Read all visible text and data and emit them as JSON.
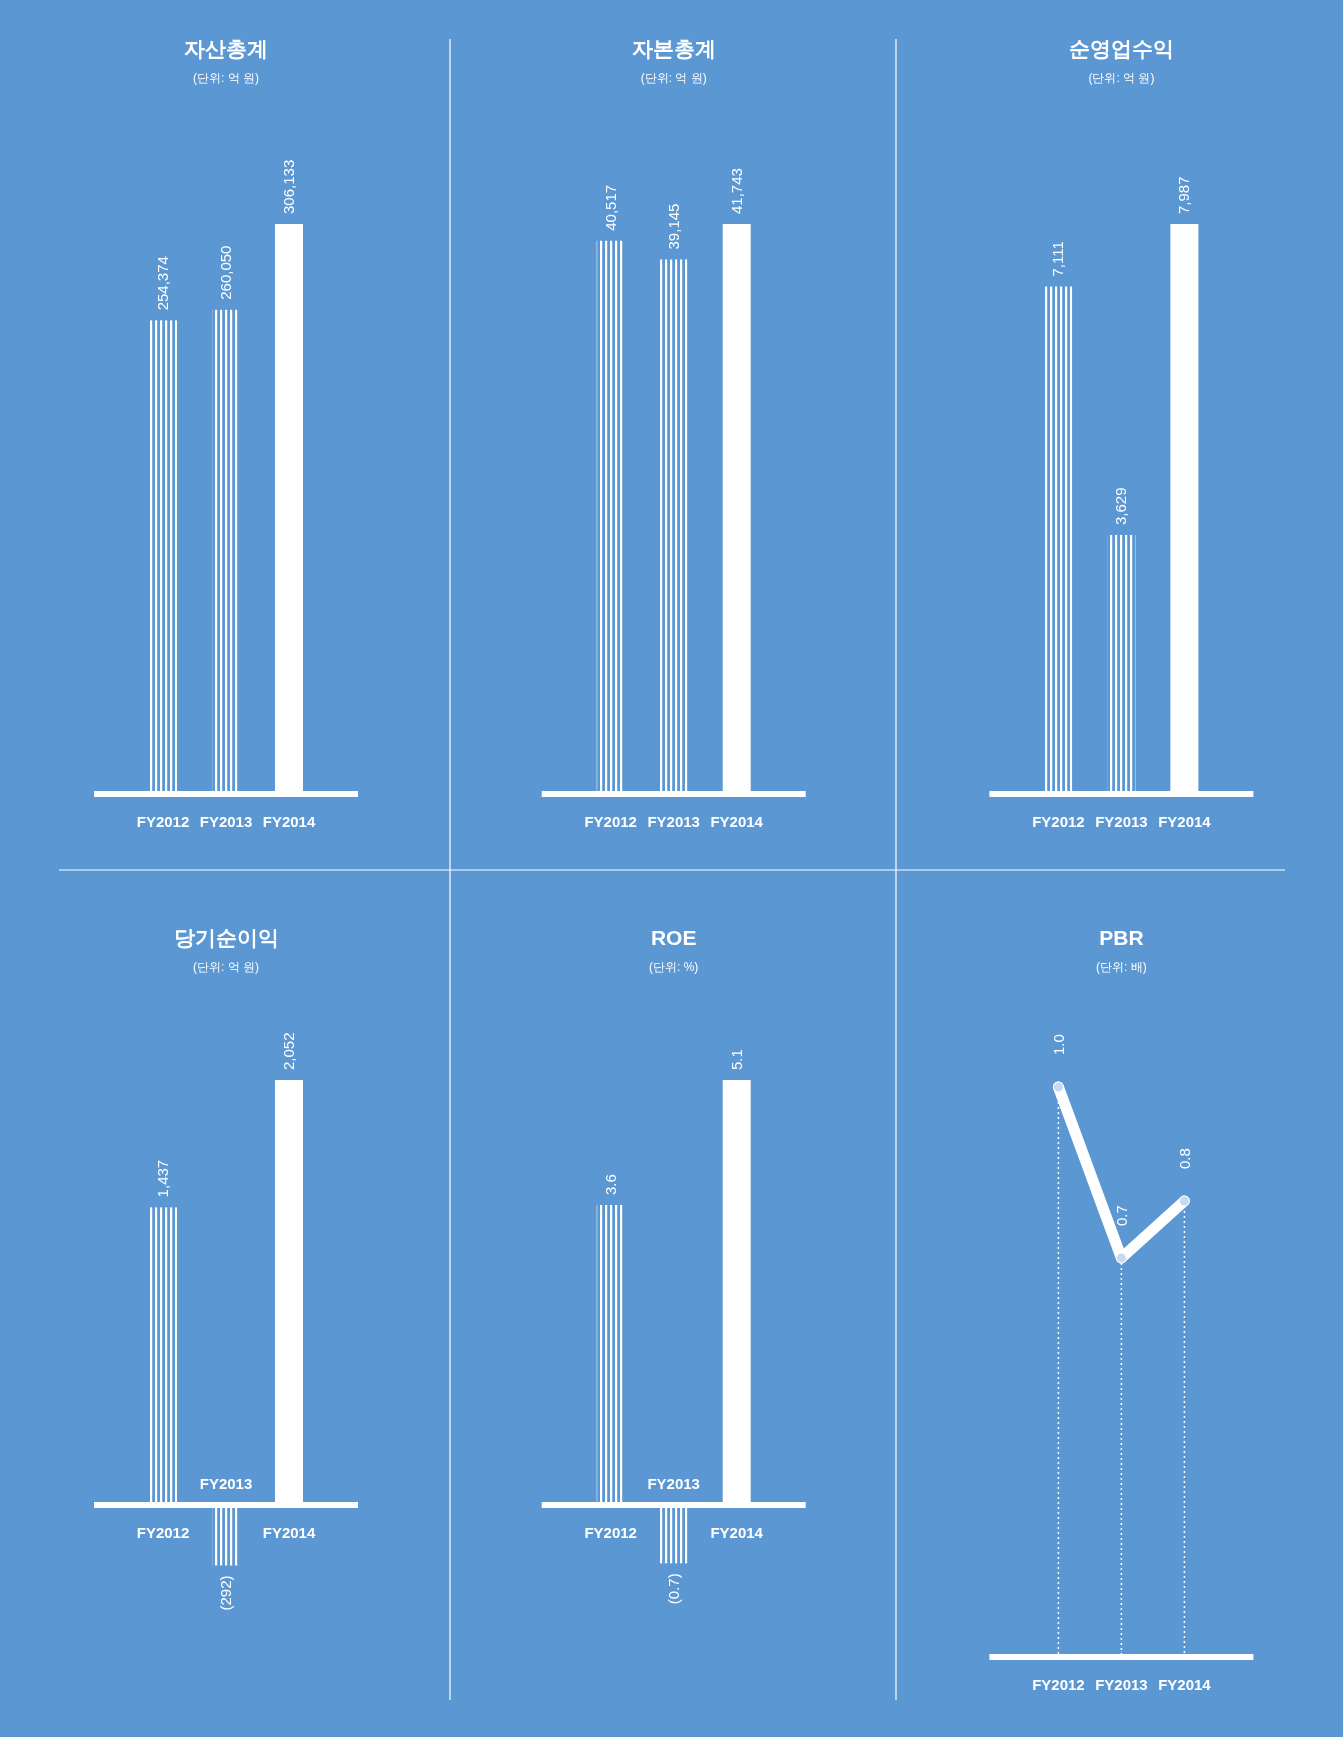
{
  "chart_data": [
    {
      "type": "bar",
      "title": "자산총계",
      "subtitle": "(단위: 억 원)",
      "categories": [
        "FY2012",
        "FY2013",
        "FY2014"
      ],
      "values": [
        254374,
        260050,
        306133
      ],
      "value_labels": [
        "254,374",
        "260,050",
        "306,133"
      ],
      "color": "#ffffff"
    },
    {
      "type": "bar",
      "title": "자본총계",
      "subtitle": "(단위: 억 원)",
      "categories": [
        "FY2012",
        "FY2013",
        "FY2014"
      ],
      "values": [
        40517,
        39145,
        41743
      ],
      "value_labels": [
        "40,517",
        "39,145",
        "41,743"
      ],
      "color": "#ffffff"
    },
    {
      "type": "bar",
      "title": "순영업수익",
      "subtitle": "(단위: 억 원)",
      "categories": [
        "FY2012",
        "FY2013",
        "FY2014"
      ],
      "values": [
        7111,
        3629,
        7987
      ],
      "value_labels": [
        "7,111",
        "3,629",
        "7,987"
      ],
      "color": "#ffffff"
    },
    {
      "type": "bar",
      "title": "당기순이익",
      "subtitle": "(단위: 억 원)",
      "categories": [
        "FY2012",
        "FY2013",
        "FY2014"
      ],
      "values": [
        1437,
        -292,
        2052
      ],
      "value_labels": [
        "1,437",
        "(292)",
        "2,052"
      ],
      "color": "#ffffff"
    },
    {
      "type": "bar",
      "title": "ROE",
      "subtitle": "(단위: %)",
      "categories": [
        "FY2012",
        "FY2013",
        "FY2014"
      ],
      "values": [
        3.6,
        -0.7,
        5.1
      ],
      "value_labels": [
        "3.6",
        "(0.7)",
        "5.1"
      ],
      "color": "#ffffff"
    },
    {
      "type": "line",
      "title": "PBR",
      "subtitle": "(단위: 배)",
      "categories": [
        "FY2012",
        "FY2013",
        "FY2014"
      ],
      "values": [
        1.0,
        0.7,
        0.8
      ],
      "value_labels": [
        "1.0",
        "0.7",
        "0.8"
      ],
      "color": "#ffffff",
      "marker": "circle"
    }
  ]
}
